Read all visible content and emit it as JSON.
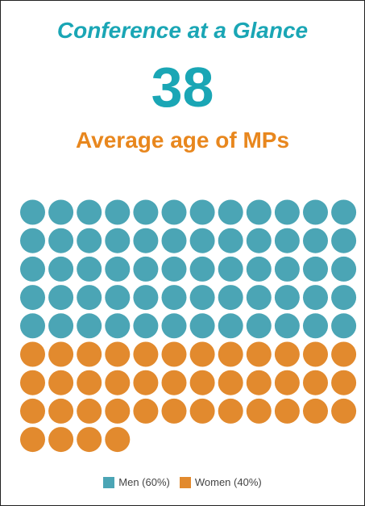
{
  "header": {
    "title": "Conference at a Glance",
    "big_number": "38",
    "subtitle": "Average age of MPs"
  },
  "colors": {
    "title": "#1aa6b5",
    "big_number": "#1aa6b5",
    "subtitle": "#e8871e"
  },
  "chart_data": {
    "type": "waffle",
    "title": "",
    "units_per_row": 12,
    "series": [
      {
        "name": "Men (60%)",
        "value": 60,
        "count": 60,
        "color": "#4ba5b5"
      },
      {
        "name": "Women (40%)",
        "value": 40,
        "count": 40,
        "color": "#e28a2e"
      }
    ],
    "legend_position": "bottom"
  },
  "legend": {
    "items": [
      {
        "label": "Men (60%)",
        "color": "#4ba5b5"
      },
      {
        "label": "Women (40%)",
        "color": "#e28a2e"
      }
    ]
  }
}
